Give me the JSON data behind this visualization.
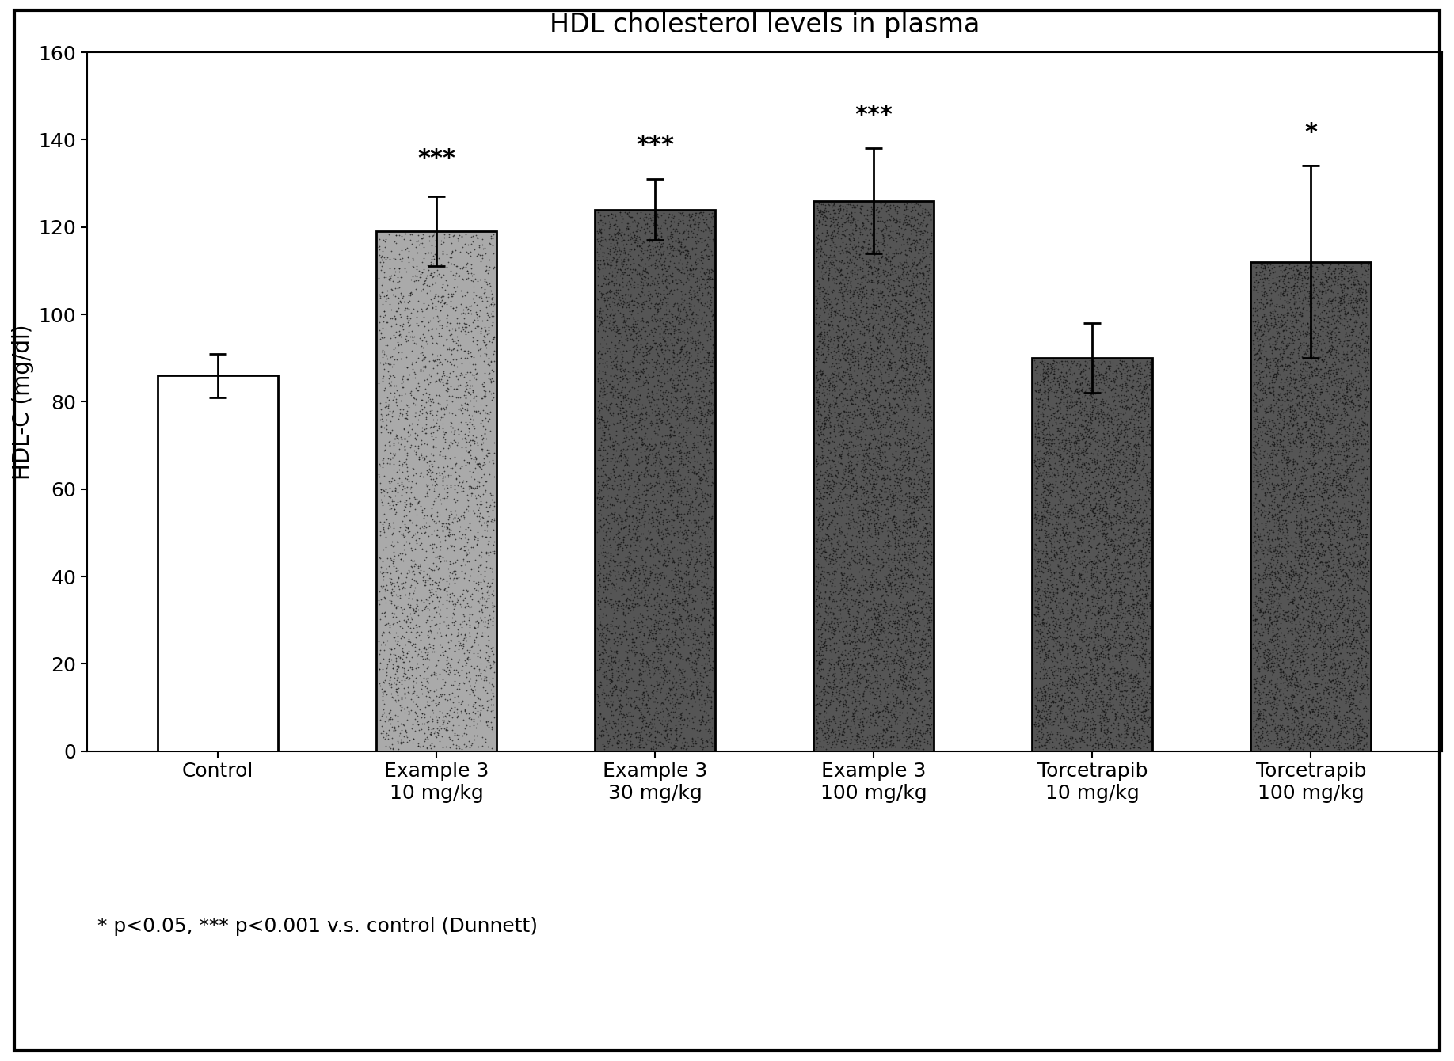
{
  "title": "HDL cholesterol levels in plasma",
  "ylabel": "HDL-C (mg/dl)",
  "ylim": [
    0,
    160
  ],
  "yticks": [
    0,
    20,
    40,
    60,
    80,
    100,
    120,
    140,
    160
  ],
  "categories": [
    "Control",
    "Example 3\n10 mg/kg",
    "Example 3\n30 mg/kg",
    "Example 3\n100 mg/kg",
    "Torcetrapib\n10 mg/kg",
    "Torcetrapib\n100 mg/kg"
  ],
  "values": [
    86,
    119,
    124,
    126,
    90,
    112
  ],
  "errors": [
    5,
    8,
    7,
    12,
    8,
    22
  ],
  "significance": [
    "",
    "***",
    "***",
    "***",
    "",
    "*"
  ],
  "sig_y_offsets": [
    0,
    6,
    5,
    5,
    0,
    5
  ],
  "note": "* p<0.05, *** p<0.001 v.s. control (Dunnett)",
  "background_color": "#ffffff",
  "plot_bg_color": "#ffffff",
  "title_fontsize": 24,
  "label_fontsize": 20,
  "tick_fontsize": 18,
  "annot_fontsize": 22,
  "note_fontsize": 18,
  "bar_width": 0.55,
  "face_colors": [
    "#ffffff",
    "#aaaaaa",
    "#555555",
    "#555555",
    "#555555",
    "#555555"
  ],
  "edge_colors": [
    "#000000",
    "#000000",
    "#000000",
    "#000000",
    "#000000",
    "#000000"
  ]
}
